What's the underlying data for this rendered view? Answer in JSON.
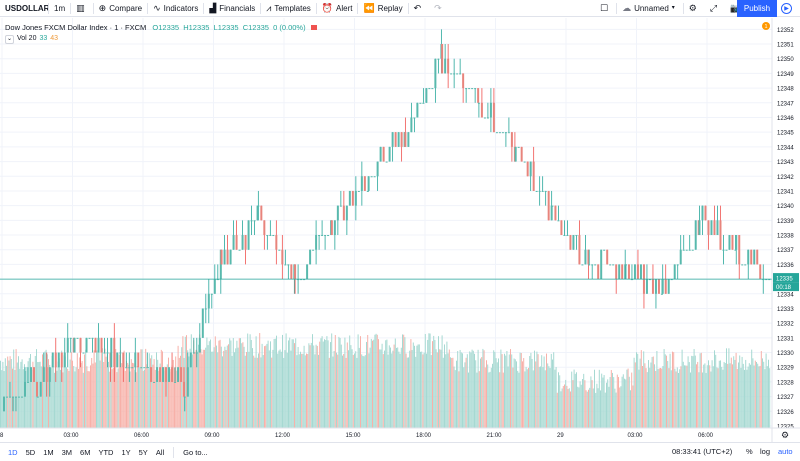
{
  "toolbar": {
    "symbol": "USDOLLAR",
    "interval": "1m",
    "compare": "Compare",
    "indicators": "Indicators",
    "financials": "Financials",
    "templates": "Templates",
    "alert": "Alert",
    "replay": "Replay",
    "layout_name": "Unnamed",
    "publish": "Publish"
  },
  "legend": {
    "title": "Dow Jones FXCM Dollar Index · 1 · FXCM",
    "open": "O12335",
    "high": "H12335",
    "low": "L12335",
    "close": "C12335",
    "change": "0 (0.00%)"
  },
  "volume_legend": {
    "label": "Vol 20",
    "value1": "33",
    "value2": "43"
  },
  "price_axis": {
    "ticks": [
      "12352",
      "12351",
      "12350",
      "12349",
      "12348",
      "12347",
      "12346",
      "12345",
      "12344",
      "12343",
      "12342",
      "12341",
      "12340",
      "12339",
      "12338",
      "12337",
      "12336",
      "12335",
      "12334",
      "12333",
      "12332",
      "12331",
      "12330",
      "12329",
      "12328",
      "12327",
      "12326",
      "12325"
    ],
    "current_price": "12335",
    "countdown": "00:18",
    "alert_badge": "1"
  },
  "time_axis": {
    "labels": [
      "8",
      "03:00",
      "06:00",
      "09:00",
      "12:00",
      "15:00",
      "18:00",
      "21:00",
      "29",
      "03:00",
      "06:00"
    ]
  },
  "chart_data": {
    "type": "candlestick",
    "price_range": [
      12325,
      12352.5
    ],
    "time_range": [
      "00:00 (28)",
      "08:33 (29)"
    ],
    "last_price": 12335,
    "profile": [
      {
        "time": "00:00",
        "close": 12327
      },
      {
        "time": "02:00",
        "close": 12328
      },
      {
        "time": "03:00",
        "close": 12331
      },
      {
        "time": "04:30",
        "close": 12330
      },
      {
        "time": "06:00",
        "close": 12329
      },
      {
        "time": "07:30",
        "close": 12328
      },
      {
        "time": "09:00",
        "close": 12336
      },
      {
        "time": "10:30",
        "close": 12339
      },
      {
        "time": "12:00",
        "close": 12335
      },
      {
        "time": "13:00",
        "close": 12339
      },
      {
        "time": "15:00",
        "close": 12342
      },
      {
        "time": "16:30",
        "close": 12345
      },
      {
        "time": "18:00",
        "close": 12350
      },
      {
        "time": "19:00",
        "close": 12347
      },
      {
        "time": "21:00",
        "close": 12344
      },
      {
        "time": "22:30",
        "close": 12339
      },
      {
        "time": "00:00",
        "close": 12336
      },
      {
        "time": "01:30",
        "close": 12336
      },
      {
        "time": "03:00",
        "close": 12334
      },
      {
        "time": "04:30",
        "close": 12339
      },
      {
        "time": "06:00",
        "close": 12337
      },
      {
        "time": "08:30",
        "close": 12335
      }
    ],
    "volume_series": [
      {
        "name": "Vol",
        "color_up": "#26a69a",
        "color_down": "#ef5350"
      }
    ]
  },
  "bottom": {
    "ranges": [
      "1D",
      "5D",
      "1M",
      "3M",
      "6M",
      "YTD",
      "1Y",
      "5Y",
      "All"
    ],
    "goto": "Go to...",
    "clock": "08:33:41 (UTC+2)",
    "percent": "%",
    "log": "log",
    "auto": "auto"
  },
  "colors": {
    "up": "#26a69a",
    "down": "#ef5350",
    "accent": "#2962ff"
  }
}
